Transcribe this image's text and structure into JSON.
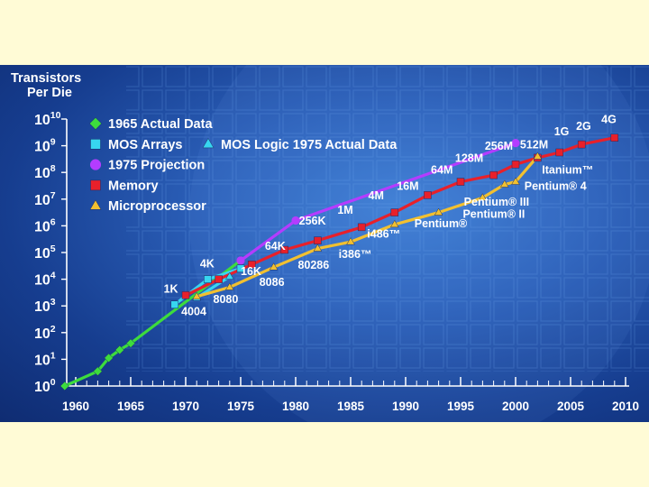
{
  "chart_data": {
    "type": "line",
    "title": "",
    "ylabel_line1": "Transistors",
    "ylabel_line2": "Per Die",
    "xlabel": "",
    "log_y": true,
    "xlim": [
      1958,
      2010.5
    ],
    "ylim_exp": [
      0,
      10
    ],
    "x_ticks": [
      "1960",
      "1965",
      "1970",
      "1975",
      "1980",
      "1985",
      "1990",
      "1995",
      "2000",
      "2005",
      "2010"
    ],
    "y_ticks": [
      {
        "base": "10",
        "exp": "10"
      },
      {
        "base": "10",
        "exp": "9"
      },
      {
        "base": "10",
        "exp": "8"
      },
      {
        "base": "10",
        "exp": "7"
      },
      {
        "base": "10",
        "exp": "6"
      },
      {
        "base": "10",
        "exp": "5"
      },
      {
        "base": "10",
        "exp": "4"
      },
      {
        "base": "10",
        "exp": "3"
      },
      {
        "base": "10",
        "exp": "2"
      },
      {
        "base": "10",
        "exp": "1"
      },
      {
        "base": "10",
        "exp": "0"
      }
    ],
    "legend": [
      {
        "label": "1965 Actual Data",
        "marker": "diamond",
        "color": "#3ddc3d"
      },
      {
        "label": "MOS Arrays",
        "marker": "square",
        "color": "#37d6f0"
      },
      {
        "label": "MOS Logic 1975 Actual Data",
        "marker": "triangle",
        "color": "#37d6f0"
      },
      {
        "label": "1975 Projection",
        "marker": "circle",
        "color": "#b43cff"
      },
      {
        "label": "Memory",
        "marker": "square",
        "color": "#e8202a"
      },
      {
        "label": "Microprocessor",
        "marker": "triangle",
        "color": "#f2c030"
      }
    ],
    "legend_position": "top-left",
    "series": [
      {
        "key": "actual1965",
        "color": "#3ddc3d",
        "marker": "diamond",
        "points": [
          [
            1959,
            0
          ],
          [
            1962,
            0.55
          ],
          [
            1963,
            1.05
          ],
          [
            1964,
            1.35
          ],
          [
            1965,
            1.6
          ],
          [
            1975,
            4.7
          ]
        ]
      },
      {
        "key": "mos_arrays",
        "color": "#37d6f0",
        "marker": "square",
        "points": [
          [
            1969,
            3.05
          ],
          [
            1972,
            4.0
          ],
          [
            1975,
            4.4
          ]
        ]
      },
      {
        "key": "mos_logic",
        "color": "#37d6f0",
        "marker": "triangle",
        "points": [
          [
            1971,
            3.3
          ],
          [
            1974,
            4.1
          ]
        ]
      },
      {
        "key": "projection1975",
        "color": "#b43cff",
        "marker": "circle",
        "points": [
          [
            1975,
            4.7
          ],
          [
            1980,
            6.2
          ],
          [
            2000,
            9.1
          ]
        ]
      },
      {
        "key": "memory",
        "color": "#e8202a",
        "marker": "square",
        "points": [
          [
            1970,
            3.4
          ],
          [
            1973,
            4.0
          ],
          [
            1976,
            4.55
          ],
          [
            1979,
            5.1
          ],
          [
            1982,
            5.45
          ],
          [
            1986,
            5.95
          ],
          [
            1989,
            6.5
          ],
          [
            1992,
            7.15
          ],
          [
            1995,
            7.65
          ],
          [
            1998,
            7.9
          ],
          [
            2000,
            8.3
          ],
          [
            2002,
            8.55
          ],
          [
            2004,
            8.75
          ],
          [
            2006,
            9.05
          ],
          [
            2009,
            9.3
          ]
        ]
      },
      {
        "key": "microprocessor",
        "color": "#f2c030",
        "marker": "triangle",
        "points": [
          [
            1971,
            3.35
          ],
          [
            1974,
            3.7
          ],
          [
            1978,
            4.45
          ],
          [
            1982,
            5.15
          ],
          [
            1985,
            5.4
          ],
          [
            1989,
            6.05
          ],
          [
            1993,
            6.5
          ],
          [
            1997,
            7.05
          ],
          [
            1999,
            7.55
          ],
          [
            2000,
            7.65
          ],
          [
            2002,
            8.6
          ]
        ]
      }
    ],
    "annotations": [
      {
        "text": "1K",
        "x": 1968,
        "y": 3.5
      },
      {
        "text": "4K",
        "x": 1971.3,
        "y": 4.45
      },
      {
        "text": "16K",
        "x": 1975,
        "y": 4.15
      },
      {
        "text": "64K",
        "x": 1977.2,
        "y": 5.1
      },
      {
        "text": "256K",
        "x": 1980.3,
        "y": 6.05
      },
      {
        "text": "1M",
        "x": 1983.8,
        "y": 6.45
      },
      {
        "text": "4M",
        "x": 1986.6,
        "y": 7.0
      },
      {
        "text": "16M",
        "x": 1989.2,
        "y": 7.35
      },
      {
        "text": "64M",
        "x": 1992.3,
        "y": 7.95
      },
      {
        "text": "128M",
        "x": 1994.5,
        "y": 8.4
      },
      {
        "text": "256M",
        "x": 1997.2,
        "y": 8.85
      },
      {
        "text": "512M",
        "x": 2000.4,
        "y": 8.9
      },
      {
        "text": "1G",
        "x": 2003.5,
        "y": 9.4
      },
      {
        "text": "2G",
        "x": 2005.5,
        "y": 9.6
      },
      {
        "text": "4G",
        "x": 2007.8,
        "y": 9.85
      },
      {
        "text": "4004",
        "x": 1969.6,
        "y": 2.65
      },
      {
        "text": "8080",
        "x": 1972.5,
        "y": 3.1
      },
      {
        "text": "8086",
        "x": 1976.7,
        "y": 3.75
      },
      {
        "text": "80286",
        "x": 1980.2,
        "y": 4.4
      },
      {
        "text": "i386™",
        "x": 1983.9,
        "y": 4.8
      },
      {
        "text": "i486™",
        "x": 1986.5,
        "y": 5.55
      },
      {
        "text": "Pentium®",
        "x": 1990.8,
        "y": 5.95
      },
      {
        "text": "Pentium® II",
        "x": 1995.2,
        "y": 6.3
      },
      {
        "text": "Pentium® III",
        "x": 1995.3,
        "y": 6.75
      },
      {
        "text": "Pentium® 4",
        "x": 2000.8,
        "y": 7.35
      },
      {
        "text": "Itanium™",
        "x": 2002.4,
        "y": 7.95
      }
    ]
  }
}
